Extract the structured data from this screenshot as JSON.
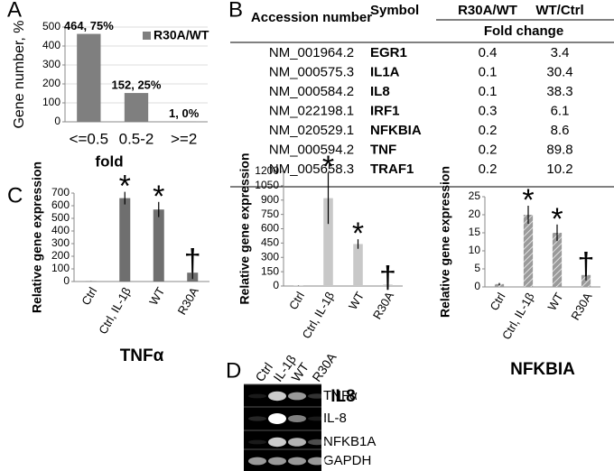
{
  "panel_labels": [
    "A",
    "B",
    "C",
    "D"
  ],
  "chart_data": [
    {
      "type": "bar",
      "ylabel": "Gene number, %",
      "xlabel": "fold",
      "categories": [
        "<=0.5",
        "0.5-2",
        ">=2"
      ],
      "series": [
        {
          "name": "R30A/WT",
          "color": "#7f7f7f",
          "values": [
            464,
            152,
            1
          ],
          "value_labels": [
            "464, 75%",
            "152, 25%",
            "1, 0%"
          ]
        }
      ],
      "ylim": [
        0,
        500
      ],
      "yticks": [
        0,
        100,
        200,
        300,
        400,
        500
      ],
      "grid": true
    },
    {
      "type": "bar",
      "ylabel": "Relative gene expression",
      "xlabel": "TNFα",
      "categories": [
        "Ctrl",
        "Ctrl, IL-1β",
        "WT",
        "R30A"
      ],
      "values": [
        2,
        660,
        570,
        70
      ],
      "errors": [
        1,
        50,
        60,
        50
      ],
      "markers": [
        null,
        "*",
        "*",
        "†"
      ],
      "color": "#6f6f6f",
      "ylim": [
        0,
        700
      ],
      "yticks": [
        0,
        100,
        200,
        300,
        400,
        500,
        600,
        700
      ],
      "grid": false
    },
    {
      "type": "bar",
      "ylabel": "Relative gene expression",
      "xlabel": "IL8",
      "categories": [
        "Ctrl",
        "Ctrl, IL-1β",
        "WT",
        "R30A"
      ],
      "values": [
        3,
        920,
        440,
        15
      ],
      "errors": [
        2,
        270,
        50,
        15
      ],
      "markers": [
        null,
        "*",
        "*",
        "†"
      ],
      "color": "#c8c8c8",
      "ylim": [
        0,
        1200
      ],
      "yticks": [
        0,
        150,
        300,
        450,
        600,
        750,
        900,
        1050,
        1200
      ],
      "grid": false
    },
    {
      "type": "bar",
      "ylabel": "Relative gene expression",
      "xlabel": "NFKBIA",
      "categories": [
        "Ctrl",
        "Ctrl, IL-1β",
        "WT",
        "R30A"
      ],
      "values": [
        0.8,
        20,
        15,
        3.3
      ],
      "errors": [
        0.3,
        2.5,
        2.3,
        1.5
      ],
      "markers": [
        null,
        "*",
        "*",
        "†"
      ],
      "color": "#9a9a9a",
      "hatch": true,
      "ylim": [
        0,
        25
      ],
      "yticks": [
        0,
        5,
        10,
        15,
        20,
        25
      ],
      "grid": false
    }
  ],
  "table": {
    "header": [
      "Accession number",
      "Symbol",
      "R30A/WT",
      "WT/Ctrl"
    ],
    "subheader": "Fold change",
    "rows": [
      [
        "NM_001964.2",
        "EGR1",
        "0.4",
        "3.4"
      ],
      [
        "NM_000575.3",
        "IL1A",
        "0.1",
        "30.4"
      ],
      [
        "NM_000584.2",
        "IL8",
        "0.1",
        "38.3"
      ],
      [
        "NM_022198.1",
        "IRF1",
        "0.3",
        "6.1"
      ],
      [
        "NM_020529.1",
        "NFKBIA",
        "0.2",
        "8.6"
      ],
      [
        "NM_000594.2",
        "TNF",
        "0.2",
        "89.8"
      ],
      [
        "NM_005658.3",
        "TRAF1",
        "0.2",
        "10.2"
      ]
    ]
  },
  "gel": {
    "lanes": [
      "Ctrl",
      "IL-1β",
      "WT",
      "R30A"
    ],
    "rows": [
      "TNFα",
      "IL-8",
      "NFKB1A",
      "GAPDH"
    ]
  }
}
